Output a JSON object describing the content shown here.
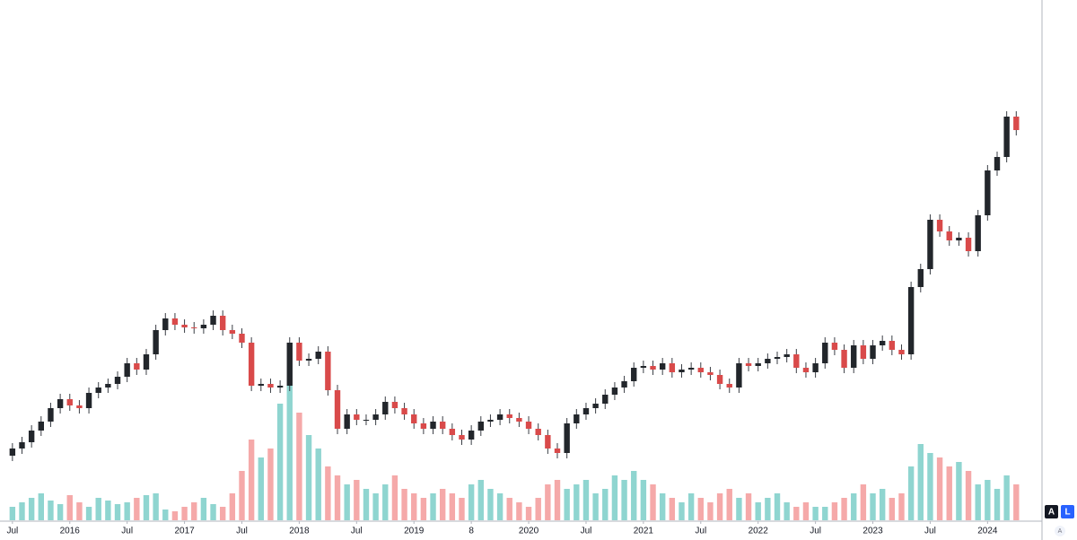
{
  "chart_data": {
    "type": "candlestick",
    "x": [
      0,
      1,
      2,
      3,
      4,
      5,
      6,
      7,
      8,
      9,
      10,
      11,
      12,
      13,
      14,
      15,
      16,
      17,
      18,
      19,
      20,
      21,
      22,
      23,
      24,
      25,
      26,
      27,
      28,
      29,
      30,
      31,
      32,
      33,
      34,
      35,
      36,
      37,
      38,
      39,
      40,
      41,
      42,
      43,
      44,
      45,
      46,
      47,
      48,
      49,
      50,
      51,
      52,
      53,
      54,
      55,
      56,
      57,
      58,
      59,
      60,
      61,
      62,
      63,
      64,
      65,
      66,
      67,
      68,
      69,
      70,
      71,
      72,
      73,
      74,
      75,
      76,
      77,
      78,
      79,
      80,
      81,
      82,
      83,
      84,
      85,
      86,
      87,
      88,
      89,
      90,
      91,
      92,
      93,
      94,
      95,
      96,
      97,
      98,
      99,
      100,
      101,
      102,
      103,
      104,
      105
    ],
    "open": [
      72,
      80,
      87,
      100,
      110,
      125,
      135,
      128,
      125,
      142,
      148,
      152,
      160,
      175,
      168,
      185,
      212,
      225,
      218,
      215,
      214,
      218,
      228,
      212,
      208,
      198,
      150,
      152,
      148,
      150,
      198,
      178,
      180,
      188,
      145,
      102,
      118,
      112,
      112,
      118,
      132,
      125,
      118,
      108,
      102,
      110,
      102,
      95,
      90,
      100,
      110,
      112,
      118,
      114,
      110,
      102,
      95,
      80,
      75,
      108,
      118,
      125,
      130,
      140,
      148,
      155,
      170,
      172,
      168,
      175,
      165,
      168,
      170,
      165,
      162,
      152,
      148,
      175,
      172,
      175,
      180,
      182,
      185,
      170,
      165,
      175,
      198,
      190,
      170,
      195,
      180,
      195,
      200,
      190,
      185,
      260,
      280,
      335,
      322,
      312,
      315,
      300,
      340,
      390,
      405,
      450
    ],
    "high": [
      86,
      93,
      106,
      116,
      131,
      141,
      141,
      134,
      148,
      154,
      158,
      166,
      181,
      181,
      191,
      218,
      231,
      231,
      224,
      221,
      224,
      234,
      234,
      218,
      214,
      204,
      158,
      158,
      156,
      204,
      204,
      186,
      194,
      194,
      151,
      124,
      124,
      118,
      124,
      138,
      138,
      131,
      124,
      114,
      116,
      116,
      108,
      101,
      106,
      116,
      118,
      124,
      124,
      120,
      116,
      108,
      101,
      86,
      114,
      124,
      131,
      136,
      146,
      154,
      161,
      176,
      178,
      178,
      181,
      181,
      174,
      176,
      176,
      171,
      168,
      158,
      181,
      181,
      181,
      186,
      188,
      191,
      191,
      176,
      181,
      204,
      204,
      196,
      201,
      201,
      201,
      206,
      206,
      196,
      266,
      286,
      341,
      341,
      328,
      321,
      321,
      346,
      396,
      411,
      456,
      456
    ],
    "low": [
      66,
      74,
      81,
      94,
      104,
      119,
      122,
      119,
      119,
      136,
      142,
      146,
      154,
      162,
      162,
      179,
      206,
      212,
      209,
      208,
      208,
      212,
      206,
      202,
      192,
      144,
      144,
      142,
      142,
      144,
      172,
      172,
      174,
      139,
      96,
      96,
      106,
      106,
      106,
      112,
      119,
      112,
      102,
      96,
      96,
      96,
      89,
      84,
      84,
      94,
      104,
      106,
      108,
      104,
      96,
      89,
      74,
      69,
      69,
      102,
      112,
      119,
      124,
      134,
      142,
      149,
      164,
      162,
      162,
      159,
      159,
      162,
      159,
      156,
      146,
      142,
      142,
      166,
      166,
      169,
      174,
      176,
      164,
      159,
      159,
      169,
      184,
      164,
      164,
      174,
      174,
      189,
      184,
      179,
      179,
      254,
      274,
      316,
      306,
      306,
      294,
      294,
      334,
      384,
      399,
      429
    ],
    "close": [
      80,
      87,
      100,
      110,
      125,
      135,
      128,
      125,
      142,
      148,
      152,
      160,
      175,
      168,
      185,
      212,
      225,
      218,
      215,
      214,
      218,
      228,
      212,
      208,
      198,
      150,
      152,
      148,
      150,
      198,
      178,
      180,
      188,
      145,
      102,
      118,
      112,
      112,
      118,
      132,
      125,
      118,
      108,
      102,
      110,
      102,
      95,
      90,
      100,
      110,
      112,
      118,
      114,
      110,
      102,
      95,
      80,
      75,
      108,
      118,
      125,
      130,
      140,
      148,
      155,
      170,
      172,
      168,
      175,
      165,
      168,
      170,
      165,
      162,
      152,
      148,
      175,
      172,
      175,
      180,
      182,
      185,
      170,
      165,
      175,
      198,
      190,
      170,
      195,
      180,
      195,
      200,
      190,
      185,
      260,
      280,
      335,
      322,
      312,
      315,
      300,
      340,
      390,
      405,
      450,
      435
    ],
    "volume": [
      15,
      20,
      25,
      30,
      22,
      18,
      28,
      20,
      15,
      25,
      22,
      18,
      20,
      25,
      28,
      30,
      12,
      10,
      15,
      20,
      25,
      18,
      15,
      30,
      55,
      90,
      70,
      80,
      130,
      150,
      120,
      95,
      80,
      60,
      50,
      40,
      45,
      35,
      30,
      40,
      50,
      35,
      30,
      25,
      30,
      35,
      30,
      25,
      40,
      45,
      35,
      30,
      25,
      20,
      15,
      25,
      40,
      45,
      35,
      40,
      45,
      30,
      35,
      50,
      45,
      55,
      45,
      40,
      30,
      25,
      20,
      30,
      25,
      20,
      30,
      35,
      25,
      30,
      20,
      25,
      30,
      20,
      15,
      20,
      15,
      15,
      20,
      25,
      30,
      40,
      30,
      35,
      25,
      30,
      60,
      85,
      75,
      70,
      60,
      65,
      55,
      40,
      45,
      35,
      50,
      40
    ],
    "xlim": [
      -1.3,
      107.6
    ],
    "ylim": [
      0,
      580
    ],
    "vylim": [
      0,
      160
    ],
    "xticks": [
      {
        "value": 0,
        "label": "Jul"
      },
      {
        "value": 6,
        "label": "2016"
      },
      {
        "value": 12,
        "label": "Jul"
      },
      {
        "value": 18,
        "label": "2017"
      },
      {
        "value": 24,
        "label": "Jul"
      },
      {
        "value": 30,
        "label": "2018"
      },
      {
        "value": 36,
        "label": "Jul"
      },
      {
        "value": 42,
        "label": "2019"
      },
      {
        "value": 48,
        "label": "8"
      },
      {
        "value": 54,
        "label": "2020"
      },
      {
        "value": 60,
        "label": "Jul"
      },
      {
        "value": 66,
        "label": "2021"
      },
      {
        "value": 72,
        "label": "Jul"
      },
      {
        "value": 78,
        "label": "2022"
      },
      {
        "value": 84,
        "label": "Jul"
      },
      {
        "value": 90,
        "label": "2023"
      },
      {
        "value": 96,
        "label": "Jul"
      },
      {
        "value": 102,
        "label": "2024"
      }
    ],
    "up_color": "#22262b",
    "down_color": "#d94a4a",
    "wick_color": "#3a3e45",
    "volume_up_color": "#8fd5d0",
    "volume_down_color": "#f5a9a9",
    "controls": {
      "auto": "A",
      "log": "L",
      "scale": "A"
    }
  }
}
